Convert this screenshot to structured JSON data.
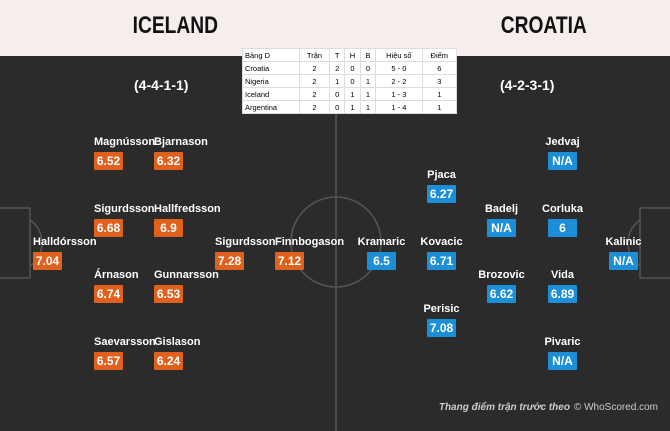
{
  "header": {
    "home_team": "ICELAND",
    "away_team": "CROATIA",
    "home_formation": "(4-4-1-1)",
    "away_formation": "(4-2-3-1)"
  },
  "table": {
    "columns": [
      "Bảng D",
      "Trận",
      "T",
      "H",
      "B",
      "Hiệu số",
      "Điểm"
    ],
    "rows": [
      [
        "Croatia",
        "2",
        "2",
        "0",
        "0",
        "5 - 0",
        "6"
      ],
      [
        "Nigeria",
        "2",
        "1",
        "0",
        "1",
        "2 - 2",
        "3"
      ],
      [
        "Iceland",
        "2",
        "0",
        "1",
        "1",
        "1 - 3",
        "1"
      ],
      [
        "Argentina",
        "2",
        "0",
        "1",
        "1",
        "1 - 4",
        "1"
      ]
    ]
  },
  "home_players": [
    {
      "name": "Magnússon",
      "rating": "6.52"
    },
    {
      "name": "Bjarnason",
      "rating": "6.32"
    },
    {
      "name": "Sigurdsson",
      "rating": "6.68"
    },
    {
      "name": "Hallfredsson",
      "rating": "6.9"
    },
    {
      "name": "Halldórsson",
      "rating": "7.04"
    },
    {
      "name": "Sigurdsson",
      "rating": "7.28"
    },
    {
      "name": "Finnbogason",
      "rating": "7.12"
    },
    {
      "name": "Árnason",
      "rating": "6.74"
    },
    {
      "name": "Gunnarsson",
      "rating": "6.53"
    },
    {
      "name": "Saevarsson",
      "rating": "6.57"
    },
    {
      "name": "Gislason",
      "rating": "6.24"
    }
  ],
  "away_players": [
    {
      "name": "Jedvaj",
      "rating": "N/A"
    },
    {
      "name": "Pjaca",
      "rating": "6.27"
    },
    {
      "name": "Badelj",
      "rating": "N/A"
    },
    {
      "name": "Corluka",
      "rating": "6"
    },
    {
      "name": "Kramaric",
      "rating": "6.5"
    },
    {
      "name": "Kovacic",
      "rating": "6.71"
    },
    {
      "name": "Kalinic",
      "rating": "N/A"
    },
    {
      "name": "Brozovic",
      "rating": "6.62"
    },
    {
      "name": "Vida",
      "rating": "6.89"
    },
    {
      "name": "Perisic",
      "rating": "7.08"
    },
    {
      "name": "Pivaric",
      "rating": "N/A"
    }
  ],
  "footer": {
    "caption": "Thang điểm trận trước theo",
    "source": "© WhoScored.com"
  }
}
